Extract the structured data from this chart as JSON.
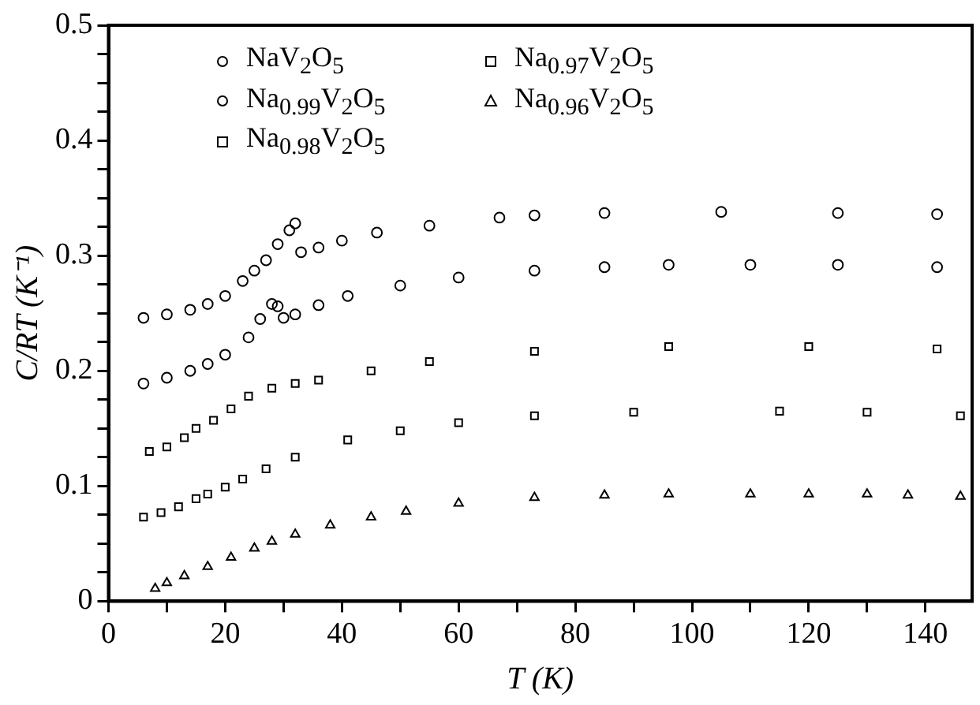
{
  "chart_data": {
    "type": "scatter",
    "xlabel": "T (K)",
    "ylabel": "C/RT (K⁻¹)",
    "xlim": [
      0,
      148
    ],
    "ylim": [
      0,
      0.5
    ],
    "xticks": [
      0,
      {
        "value": 10,
        "label": null
      },
      20,
      {
        "value": 30,
        "label": null
      },
      40,
      {
        "value": 50,
        "label": null
      },
      60,
      {
        "value": 70,
        "label": null
      },
      80,
      {
        "value": 90,
        "label": null
      },
      100,
      {
        "value": 110,
        "label": null
      },
      120,
      {
        "value": 130,
        "label": null
      },
      140
    ],
    "yticks": [
      0,
      {
        "value": 0.025,
        "label": null
      },
      {
        "value": 0.05,
        "label": null
      },
      {
        "value": 0.075,
        "label": null
      },
      0.1,
      {
        "value": 0.125,
        "label": null
      },
      {
        "value": 0.15,
        "label": null
      },
      {
        "value": 0.175,
        "label": null
      },
      0.2,
      {
        "value": 0.225,
        "label": null
      },
      {
        "value": 0.25,
        "label": null
      },
      {
        "value": 0.275,
        "label": null
      },
      0.3,
      {
        "value": 0.325,
        "label": null
      },
      {
        "value": 0.35,
        "label": null
      },
      {
        "value": 0.375,
        "label": null
      },
      0.4,
      {
        "value": 0.425,
        "label": null
      },
      {
        "value": 0.45,
        "label": null
      },
      {
        "value": 0.475,
        "label": null
      },
      0.5
    ],
    "grid": false,
    "legend": "top left",
    "series": [
      {
        "name": "NaV$_{2}$O$_{5}$",
        "color": "#000000",
        "marker": "circle",
        "x": [
          6,
          10,
          14,
          17,
          20,
          23,
          25,
          27,
          29,
          31,
          32,
          33,
          36,
          40,
          46,
          55,
          67,
          73,
          85,
          105,
          125,
          142
        ],
        "values": [
          0.246,
          0.249,
          0.253,
          0.258,
          0.265,
          0.278,
          0.287,
          0.296,
          0.31,
          0.322,
          0.328,
          0.303,
          0.307,
          0.313,
          0.32,
          0.326,
          0.333,
          0.335,
          0.337,
          0.338,
          0.337,
          0.336
        ]
      },
      {
        "name": "Na$_{0.99}$V$_{2}$O$_{5}$",
        "color": "#000000",
        "marker": "circle",
        "x": [
          6,
          10,
          14,
          17,
          20,
          24,
          26,
          28,
          29,
          30,
          32,
          36,
          41,
          50,
          60,
          73,
          85,
          96,
          110,
          125,
          142
        ],
        "values": [
          0.189,
          0.194,
          0.2,
          0.206,
          0.214,
          0.229,
          0.245,
          0.258,
          0.256,
          0.246,
          0.249,
          0.257,
          0.265,
          0.274,
          0.281,
          0.287,
          0.29,
          0.292,
          0.292,
          0.292,
          0.29
        ]
      },
      {
        "name": "Na$_{0.98}$V$_{2}$O$_{5}$",
        "color": "#000000",
        "marker": "square",
        "x": [
          7,
          10,
          13,
          15,
          18,
          21,
          24,
          28,
          32,
          36,
          45,
          55,
          73,
          96,
          120,
          142
        ],
        "values": [
          0.13,
          0.134,
          0.142,
          0.15,
          0.157,
          0.167,
          0.178,
          0.185,
          0.189,
          0.192,
          0.2,
          0.208,
          0.217,
          0.221,
          0.221,
          0.219
        ]
      },
      {
        "name": "Na$_{0.97}$V$_{2}$O$_{5}$",
        "color": "#000000",
        "marker": "square",
        "x": [
          6,
          9,
          12,
          15,
          17,
          20,
          23,
          27,
          32,
          41,
          50,
          60,
          73,
          90,
          115,
          130,
          146
        ],
        "values": [
          0.073,
          0.077,
          0.082,
          0.089,
          0.093,
          0.099,
          0.106,
          0.115,
          0.125,
          0.14,
          0.148,
          0.155,
          0.161,
          0.164,
          0.165,
          0.164,
          0.161
        ]
      },
      {
        "name": "Na$_{0.96}$V$_{2}$O$_{5}$",
        "color": "#000000",
        "marker": "triangle",
        "x": [
          8,
          10,
          13,
          17,
          21,
          25,
          28,
          32,
          38,
          45,
          51,
          60,
          73,
          85,
          96,
          110,
          120,
          130,
          137,
          146
        ],
        "values": [
          0.011,
          0.016,
          0.022,
          0.03,
          0.038,
          0.046,
          0.052,
          0.058,
          0.066,
          0.073,
          0.078,
          0.085,
          0.09,
          0.092,
          0.093,
          0.093,
          0.093,
          0.093,
          0.092,
          0.091
        ]
      }
    ]
  }
}
